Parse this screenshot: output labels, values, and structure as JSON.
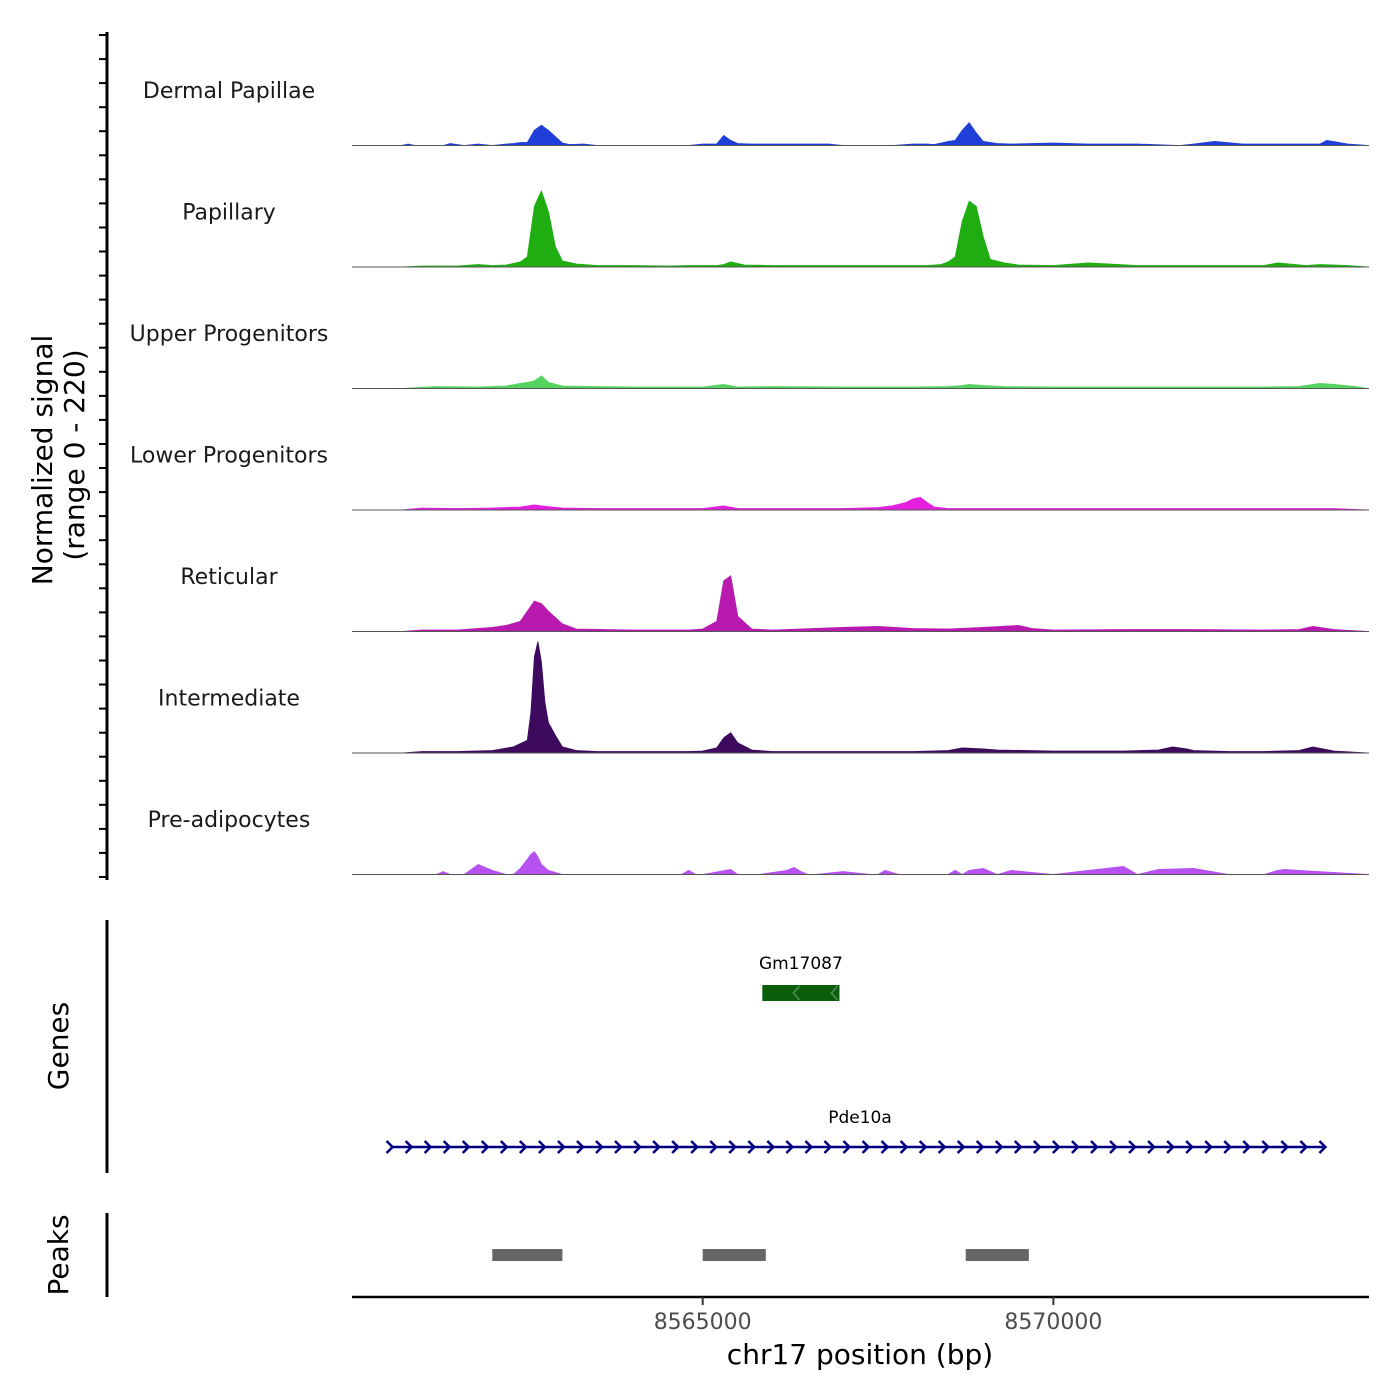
{
  "chart_data": {
    "type": "area",
    "chromosome": "chr17",
    "xlabel": "chr17 position (bp)",
    "ylabel_line1": "Normalized signal",
    "ylabel_line2": "(range 0 - 220)",
    "signal_range": [
      0,
      220
    ],
    "xlim": [
      8560000,
      8574500
    ],
    "x_ticks": [
      8565000,
      8570000
    ],
    "x_tick_labels": [
      "8565000",
      "8570000"
    ],
    "coverage_tracks": [
      {
        "name": "Dermal Papillae",
        "color": "#1f3fd8",
        "x": [
          8560000,
          8560700,
          8560800,
          8560900,
          8561300,
          8561400,
          8561500,
          8561600,
          8561800,
          8562000,
          8562200,
          8562300,
          8562400,
          8562500,
          8562600,
          8562700,
          8562800,
          8563000,
          8563100,
          8563300,
          8563500,
          8564800,
          8565000,
          8565200,
          8565300,
          8565400,
          8565500,
          8565700,
          8566000,
          8566200,
          8566500,
          8566800,
          8567000,
          8567700,
          8568000,
          8568200,
          8568300,
          8568400,
          8568500,
          8568600,
          8568700,
          8568800,
          8568900,
          8569000,
          8569200,
          8569400,
          8570000,
          8570500,
          8571200,
          8571800,
          8572000,
          8572300,
          8572700,
          8573200,
          8573800,
          8573900,
          8574200,
          8574500
        ],
        "values": [
          0,
          0,
          3,
          0,
          0,
          4,
          2,
          0,
          3,
          0,
          3,
          4,
          6,
          6,
          30,
          40,
          30,
          5,
          2,
          3,
          0,
          0,
          3,
          3,
          20,
          10,
          4,
          3,
          3,
          3,
          3,
          3,
          0,
          0,
          3,
          3,
          2,
          5,
          8,
          10,
          30,
          45,
          25,
          8,
          4,
          3,
          5,
          3,
          3,
          0,
          3,
          8,
          3,
          3,
          3,
          10,
          3,
          0
        ]
      },
      {
        "name": "Papillary",
        "color": "#1fad12",
        "x": [
          8560000,
          8560700,
          8561000,
          8561500,
          8561800,
          8562000,
          8562200,
          8562400,
          8562500,
          8562600,
          8562700,
          8562800,
          8562900,
          8563000,
          8563200,
          8563500,
          8564000,
          8564500,
          8564800,
          8565000,
          8565200,
          8565300,
          8565400,
          8565600,
          8566000,
          8567000,
          8567500,
          8567800,
          8568000,
          8568200,
          8568400,
          8568500,
          8568600,
          8568700,
          8568800,
          8568900,
          8569000,
          8569100,
          8569300,
          8569500,
          8570000,
          8570500,
          8571200,
          8572000,
          8573000,
          8573200,
          8573600,
          8573800,
          8574200,
          8574500
        ],
        "values": [
          0,
          0,
          2,
          2,
          5,
          3,
          4,
          10,
          20,
          120,
          150,
          110,
          40,
          12,
          6,
          3,
          3,
          2,
          3,
          3,
          3,
          5,
          10,
          4,
          3,
          3,
          3,
          3,
          3,
          3,
          5,
          10,
          20,
          90,
          130,
          120,
          60,
          15,
          8,
          4,
          3,
          8,
          3,
          3,
          3,
          8,
          3,
          5,
          3,
          0
        ]
      },
      {
        "name": "Upper Progenitors",
        "color": "#55d35f",
        "x": [
          8560000,
          8560700,
          8561200,
          8561800,
          8562200,
          8562400,
          8562500,
          8562600,
          8562700,
          8562800,
          8563000,
          8564000,
          8564800,
          8565000,
          8565300,
          8565500,
          8566000,
          8567000,
          8568000,
          8568500,
          8568700,
          8568800,
          8569000,
          8569300,
          8570000,
          8571000,
          8572000,
          8573000,
          8573500,
          8573800,
          8574000,
          8574300,
          8574500
        ],
        "values": [
          0,
          0,
          4,
          3,
          5,
          10,
          12,
          15,
          25,
          12,
          5,
          3,
          3,
          3,
          8,
          3,
          4,
          3,
          3,
          4,
          6,
          8,
          6,
          4,
          3,
          3,
          3,
          3,
          4,
          10,
          8,
          4,
          0
        ]
      },
      {
        "name": "Lower Progenitors",
        "color": "#e41fe0",
        "x": [
          8560000,
          8560700,
          8561000,
          8561500,
          8562000,
          8562400,
          8562600,
          8562700,
          8563000,
          8563500,
          8564000,
          8565000,
          8565300,
          8565500,
          8566000,
          8567000,
          8567500,
          8567700,
          8567900,
          8568000,
          8568100,
          8568200,
          8568300,
          8568500,
          8569000,
          8570000,
          8571000,
          8572000,
          8573000,
          8574000,
          8574500
        ],
        "values": [
          0,
          0,
          4,
          3,
          4,
          6,
          10,
          8,
          4,
          3,
          3,
          3,
          8,
          3,
          3,
          3,
          5,
          8,
          15,
          22,
          25,
          15,
          6,
          3,
          3,
          3,
          3,
          3,
          3,
          3,
          0
        ]
      },
      {
        "name": "Reticular",
        "color": "#b81ab0",
        "x": [
          8560000,
          8560700,
          8561000,
          8561500,
          8562000,
          8562200,
          8562400,
          8562500,
          8562600,
          8562700,
          8562800,
          8563000,
          8563200,
          8564000,
          8564500,
          8564800,
          8565000,
          8565200,
          8565300,
          8565400,
          8565500,
          8565700,
          8566000,
          8567000,
          8567500,
          8568000,
          8568500,
          8569000,
          8569500,
          8569700,
          8570000,
          8571000,
          8572000,
          8573000,
          8573500,
          8573700,
          8574000,
          8574500
        ],
        "values": [
          0,
          0,
          3,
          3,
          8,
          12,
          20,
          40,
          60,
          55,
          40,
          15,
          5,
          3,
          3,
          3,
          5,
          20,
          100,
          110,
          30,
          5,
          3,
          8,
          10,
          6,
          5,
          8,
          12,
          6,
          3,
          4,
          4,
          3,
          4,
          10,
          4,
          0
        ]
      },
      {
        "name": "Intermediate",
        "color": "#3d0a5e",
        "x": [
          8560000,
          8560700,
          8561000,
          8561500,
          8562000,
          8562300,
          8562500,
          8562550,
          8562600,
          8562650,
          8562700,
          8562750,
          8562800,
          8562900,
          8563000,
          8563200,
          8563500,
          8564000,
          8564800,
          8565000,
          8565200,
          8565300,
          8565400,
          8565500,
          8565700,
          8566000,
          8567000,
          8568000,
          8568500,
          8568700,
          8569000,
          8569200,
          8570000,
          8571000,
          8571500,
          8571700,
          8571900,
          8572000,
          8572500,
          8573000,
          8573500,
          8573700,
          8574000,
          8574500
        ],
        "values": [
          0,
          0,
          3,
          3,
          5,
          12,
          25,
          80,
          190,
          220,
          180,
          100,
          60,
          35,
          12,
          5,
          3,
          3,
          3,
          4,
          10,
          30,
          40,
          20,
          6,
          3,
          3,
          3,
          5,
          10,
          8,
          6,
          4,
          4,
          6,
          12,
          8,
          5,
          3,
          3,
          5,
          12,
          4,
          0
        ]
      },
      {
        "name": "Pre-adipocytes",
        "color": "#b653f0",
        "x": [
          8560000,
          8561200,
          8561300,
          8561400,
          8561600,
          8561700,
          8561800,
          8562000,
          8562200,
          8562300,
          8562400,
          8562500,
          8562550,
          8562600,
          8562650,
          8562700,
          8562800,
          8563000,
          8563200,
          8563300,
          8564000,
          8564700,
          8564800,
          8564900,
          8565000,
          8565400,
          8565500,
          8565600,
          8565800,
          8566200,
          8566300,
          8566400,
          8566500,
          8566600,
          8567000,
          8567400,
          8567500,
          8567600,
          8567800,
          8568500,
          8568600,
          8568700,
          8568800,
          8569000,
          8569100,
          8569200,
          8569400,
          8570000,
          8570500,
          8571000,
          8571200,
          8571500,
          8572000,
          8572500,
          8573000,
          8573200,
          8573300,
          8573500,
          8574500
        ],
        "values": [
          0,
          0,
          6,
          0,
          0,
          10,
          20,
          8,
          0,
          0,
          12,
          30,
          40,
          45,
          35,
          20,
          8,
          0,
          0,
          0,
          0,
          0,
          8,
          0,
          0,
          10,
          0,
          0,
          0,
          8,
          14,
          6,
          0,
          0,
          6,
          0,
          0,
          8,
          0,
          0,
          8,
          0,
          8,
          12,
          6,
          0,
          8,
          0,
          8,
          16,
          0,
          10,
          12,
          0,
          0,
          8,
          10,
          8,
          0
        ]
      }
    ],
    "genes": [
      {
        "name": "Gm17087",
        "start": 8565850,
        "end": 8566950,
        "strand": "-",
        "color": "#0a5e0a",
        "row": 1
      },
      {
        "name": "Pde10a",
        "start": 8560550,
        "end": 8573850,
        "strand": "+",
        "color": "#000080",
        "row": 2
      }
    ],
    "peaks": [
      {
        "start": 8562000,
        "end": 8563000
      },
      {
        "start": 8565000,
        "end": 8565900
      },
      {
        "start": 8568750,
        "end": 8569650
      }
    ],
    "genes_track_label": "Genes",
    "peaks_track_label": "Peaks",
    "peak_color": "#666666"
  }
}
